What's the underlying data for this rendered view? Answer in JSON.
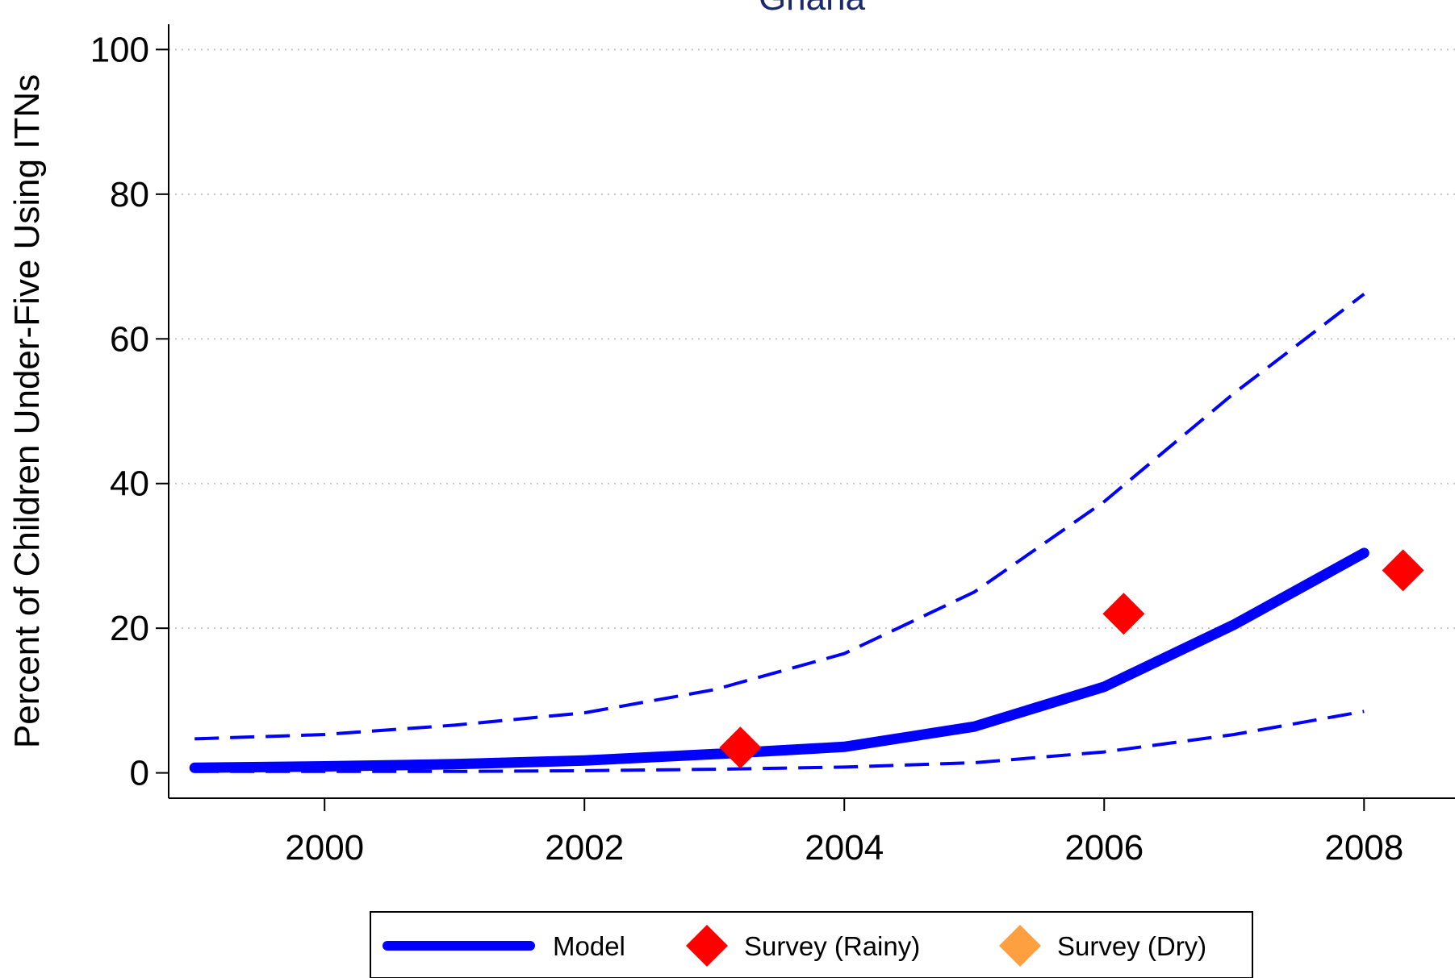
{
  "chart_data": {
    "type": "line",
    "title": "Ghana",
    "xlabel": "",
    "ylabel": "Percent of Children Under-Five Using ITNs",
    "xlim": [
      1998.8,
      2008.7
    ],
    "ylim": [
      -3.5,
      103.5
    ],
    "x_ticks": [
      2000,
      2002,
      2004,
      2006,
      2008
    ],
    "y_ticks": [
      0,
      20,
      40,
      60,
      80,
      100
    ],
    "grid": "horizontal dotted",
    "legend_position": "bottom",
    "colors": {
      "model": "#0000ff",
      "survey_rainy": "#ff0000",
      "survey_dry": "#ffa040",
      "title": "#1a2a6c"
    },
    "model": {
      "name": "Model",
      "x": [
        1999,
        2000,
        2001,
        2002,
        2003,
        2004,
        2005,
        2006,
        2007,
        2008
      ],
      "values": [
        0.7,
        0.9,
        1.2,
        1.7,
        2.6,
        3.6,
        6.4,
        11.9,
        20.5,
        30.4
      ]
    },
    "model_upper": {
      "x": [
        1999,
        2000,
        2001,
        2002,
        2003,
        2004,
        2005,
        2006,
        2007,
        2008
      ],
      "values": [
        4.7,
        5.3,
        6.6,
        8.3,
        11.5,
        16.5,
        25.0,
        37.5,
        52.5,
        66.2
      ]
    },
    "model_lower": {
      "x": [
        1999,
        2000,
        2001,
        2002,
        2003,
        2004,
        2005,
        2006,
        2007,
        2008
      ],
      "values": [
        0.2,
        0.2,
        0.2,
        0.3,
        0.5,
        0.8,
        1.4,
        2.9,
        5.3,
        8.5
      ]
    },
    "survey_rainy": {
      "name": "Survey (Rainy)",
      "x": [
        2003.2,
        2006.15,
        2008.3
      ],
      "values": [
        3.5,
        22.0,
        28.0
      ]
    },
    "survey_dry": {
      "name": "Survey (Dry)",
      "x": [],
      "values": []
    }
  }
}
